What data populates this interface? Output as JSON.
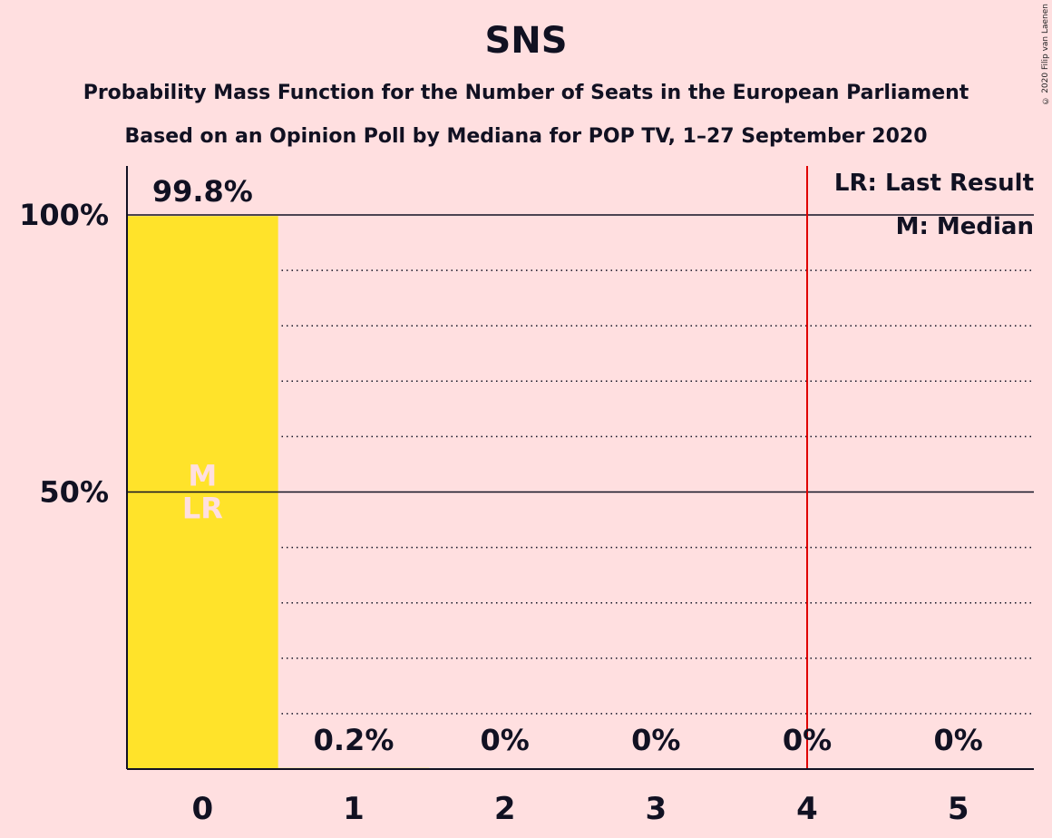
{
  "title": "SNS",
  "subtitle1": "Probability Mass Function for the Number of Seats in the European Parliament",
  "subtitle2": "Based on an Opinion Poll by Mediana for POP TV, 1–27 September 2020",
  "copyright": "© 2020 Filip van Laenen",
  "colors": {
    "background": "#ffdfe0",
    "bar": "#ffe32a",
    "last_result_line": "#e00000",
    "text": "#111122"
  },
  "chart_data": {
    "type": "bar",
    "categories": [
      "0",
      "1",
      "2",
      "3",
      "4",
      "5"
    ],
    "values": [
      99.8,
      0.2,
      0,
      0,
      0,
      0
    ],
    "value_labels": [
      "99.8%",
      "0.2%",
      "0%",
      "0%",
      "0%",
      "0%"
    ],
    "ylim": [
      0,
      100
    ],
    "y_ticks": [
      {
        "value": 50,
        "label": "50%"
      },
      {
        "value": 100,
        "label": "100%"
      }
    ],
    "minor_grid_step": 10,
    "last_result_after_category": 4.5,
    "bar_markers": [
      {
        "category": "0",
        "lines": [
          "M",
          "LR"
        ]
      }
    ],
    "legend": [
      "LR: Last Result",
      "M: Median"
    ],
    "legend_position": "top-right"
  }
}
